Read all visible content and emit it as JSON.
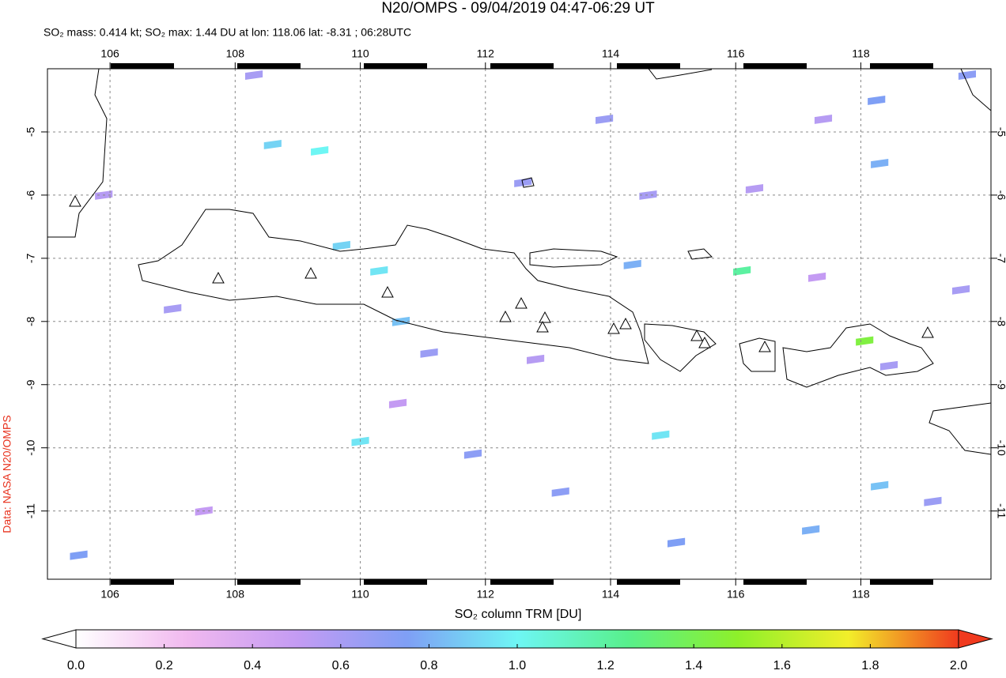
{
  "chart_data": {
    "type": "map",
    "title": "N20/OMPS - 09/04/2019 04:47-06:29 UT",
    "subtitle": "SO₂ mass: 0.414 kt; SO₂ max: 1.44 DU at lon: 118.06 lat: -8.31 ; 06:28UTC",
    "source": "Data: NASA N20/OMPS",
    "colorbar_label": "SO₂ column TRM [DU]",
    "xlim": [
      105,
      120.08
    ],
    "ylim": [
      -12.08,
      -4
    ],
    "xticks": [
      106,
      108,
      110,
      112,
      114,
      116,
      118
    ],
    "yticks": [
      -5,
      -6,
      -7,
      -8,
      -9,
      -10,
      -11
    ],
    "grid": true,
    "clim": [
      0,
      2
    ],
    "colormap": [
      "#ffffff",
      "#f1b9ef",
      "#c49bf3",
      "#7f9ff5",
      "#6ef6f4",
      "#58f08c",
      "#8ef02a",
      "#f2ee2a",
      "#f03a1e"
    ],
    "cticks": [
      {
        "value": 0,
        "label": "0.0"
      },
      {
        "value": 0.2,
        "label": "0.2"
      },
      {
        "value": 0.4,
        "label": "0.4"
      },
      {
        "value": 0.6,
        "label": "0.6"
      },
      {
        "value": 0.8,
        "label": "0.8"
      },
      {
        "value": 1,
        "label": "1.0"
      },
      {
        "value": 1.2,
        "label": "1.2"
      },
      {
        "value": 1.4,
        "label": "1.4"
      },
      {
        "value": 1.6,
        "label": "1.6"
      },
      {
        "value": 1.8,
        "label": "1.8"
      },
      {
        "value": 2,
        "label": "2.0"
      }
    ],
    "x": [
      118.06,
      116.1,
      109.35,
      114.8,
      110.3,
      108.6,
      110.0,
      109.7,
      118.3,
      117.2,
      115.05,
      110.65,
      118.3,
      118.25,
      113.9,
      112.6,
      111.1,
      111.8,
      113.2,
      119.15,
      118.45,
      114.6,
      114.35,
      117.4,
      107.0,
      105.9,
      107.5,
      112.8,
      119.6,
      116.3,
      105.5,
      108.3,
      119.7,
      117.3,
      110.6
    ],
    "y": [
      -8.31,
      -7.2,
      -5.3,
      -9.8,
      -7.2,
      -5.2,
      -9.9,
      -6.8,
      -10.6,
      -11.3,
      -11.5,
      -8.0,
      -5.5,
      -4.5,
      -4.8,
      -5.8,
      -8.5,
      -10.1,
      -10.7,
      -10.85,
      -8.7,
      -6.0,
      -7.1,
      -4.8,
      -7.8,
      -6.0,
      -11.0,
      -8.6,
      -7.5,
      -5.9,
      -11.7,
      -4.1,
      -4.1,
      -7.3,
      -9.3
    ],
    "values": [
      1.44,
      1.2,
      1.0,
      0.95,
      0.95,
      0.9,
      0.95,
      0.9,
      0.85,
      0.8,
      0.75,
      0.85,
      0.8,
      0.75,
      0.65,
      0.65,
      0.65,
      0.7,
      0.7,
      0.65,
      0.6,
      0.6,
      0.8,
      0.55,
      0.6,
      0.55,
      0.5,
      0.55,
      0.6,
      0.55,
      0.75,
      0.6,
      0.7,
      0.5,
      0.5
    ]
  }
}
